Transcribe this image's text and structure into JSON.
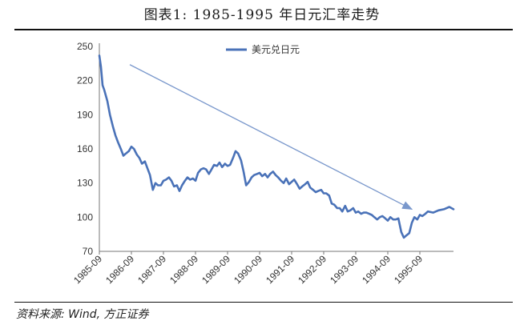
{
  "page": {
    "title": "图表1:   1985-1995 年日元汇率走势",
    "source": "资料来源: Wind, 方正证券"
  },
  "chart_data": {
    "type": "line",
    "title": "图表1:   1985-1995 年日元汇率走势",
    "xlabel": "",
    "ylabel": "",
    "x_ticks": [
      "1985-09",
      "1986-09",
      "1987-09",
      "1988-09",
      "1989-09",
      "1990-09",
      "1991-09",
      "1992-09",
      "1993-09",
      "1994-09",
      "1995-09"
    ],
    "xlim": [
      1985.75,
      1996.8
    ],
    "ylim": [
      70,
      250
    ],
    "y_ticks": [
      70,
      100,
      130,
      160,
      190,
      220,
      250
    ],
    "grid": false,
    "legend_position": "top-center",
    "colors": {
      "series": "#4a72b8",
      "trend_arrow": "#7a98cc",
      "axis": "#777777"
    },
    "series": [
      {
        "name": "美元兑日元",
        "x": [
          1985.75,
          1985.8,
          1985.85,
          1985.9,
          1986.0,
          1986.08,
          1986.17,
          1986.25,
          1986.33,
          1986.42,
          1986.5,
          1986.58,
          1986.67,
          1986.75,
          1986.83,
          1986.92,
          1987.0,
          1987.08,
          1987.17,
          1987.25,
          1987.33,
          1987.42,
          1987.5,
          1987.58,
          1987.67,
          1987.75,
          1987.83,
          1987.92,
          1988.0,
          1988.08,
          1988.17,
          1988.25,
          1988.33,
          1988.42,
          1988.5,
          1988.58,
          1988.67,
          1988.75,
          1988.83,
          1988.92,
          1989.0,
          1989.08,
          1989.17,
          1989.25,
          1989.33,
          1989.42,
          1989.5,
          1989.58,
          1989.67,
          1989.75,
          1989.83,
          1989.92,
          1990.0,
          1990.08,
          1990.17,
          1990.25,
          1990.33,
          1990.42,
          1990.5,
          1990.58,
          1990.67,
          1990.75,
          1990.83,
          1990.92,
          1991.0,
          1991.08,
          1991.17,
          1991.25,
          1991.33,
          1991.42,
          1991.5,
          1991.58,
          1991.67,
          1991.75,
          1991.83,
          1991.92,
          1992.0,
          1992.08,
          1992.17,
          1992.25,
          1992.33,
          1992.42,
          1992.5,
          1992.58,
          1992.67,
          1992.75,
          1992.83,
          1992.92,
          1993.0,
          1993.08,
          1993.17,
          1993.25,
          1993.33,
          1993.42,
          1993.5,
          1993.58,
          1993.67,
          1993.75,
          1993.83,
          1993.92,
          1994.0,
          1994.08,
          1994.17,
          1994.25,
          1994.33,
          1994.42,
          1994.5,
          1994.58,
          1994.67,
          1994.75,
          1994.83,
          1994.92,
          1995.0,
          1995.08,
          1995.17,
          1995.25,
          1995.33,
          1995.42,
          1995.5,
          1995.58,
          1995.67,
          1995.75,
          1995.83,
          1995.92,
          1996.0,
          1996.17,
          1996.33,
          1996.5,
          1996.67,
          1996.8
        ],
        "values": [
          242,
          232,
          216,
          212,
          202,
          190,
          180,
          172,
          166,
          160,
          154,
          156,
          158,
          162,
          160,
          155,
          152,
          147,
          149,
          143,
          137,
          124,
          130,
          128,
          128,
          132,
          133,
          135,
          132,
          127,
          128,
          123,
          128,
          132,
          135,
          133,
          134,
          132,
          139,
          142,
          143,
          142,
          138,
          142,
          146,
          145,
          148,
          144,
          147,
          145,
          146,
          152,
          158,
          156,
          150,
          140,
          128,
          131,
          135,
          137,
          138,
          139,
          136,
          138,
          135,
          138,
          140,
          137,
          135,
          132,
          130,
          134,
          129,
          131,
          133,
          129,
          125,
          127,
          129,
          131,
          126,
          124,
          122,
          123,
          124,
          121,
          121,
          119,
          112,
          111,
          108,
          108,
          105,
          110,
          105,
          106,
          108,
          104,
          105,
          103,
          104,
          104,
          103,
          102,
          100,
          98,
          100,
          101,
          99,
          97,
          100,
          98,
          98,
          99,
          87,
          82,
          84,
          86,
          95,
          100,
          98,
          102,
          101,
          103,
          105,
          104,
          106,
          107,
          109,
          107
        ]
      }
    ],
    "trend_arrow": {
      "from": [
        1986.7,
        234
      ],
      "to": [
        1995.5,
        107
      ]
    }
  }
}
